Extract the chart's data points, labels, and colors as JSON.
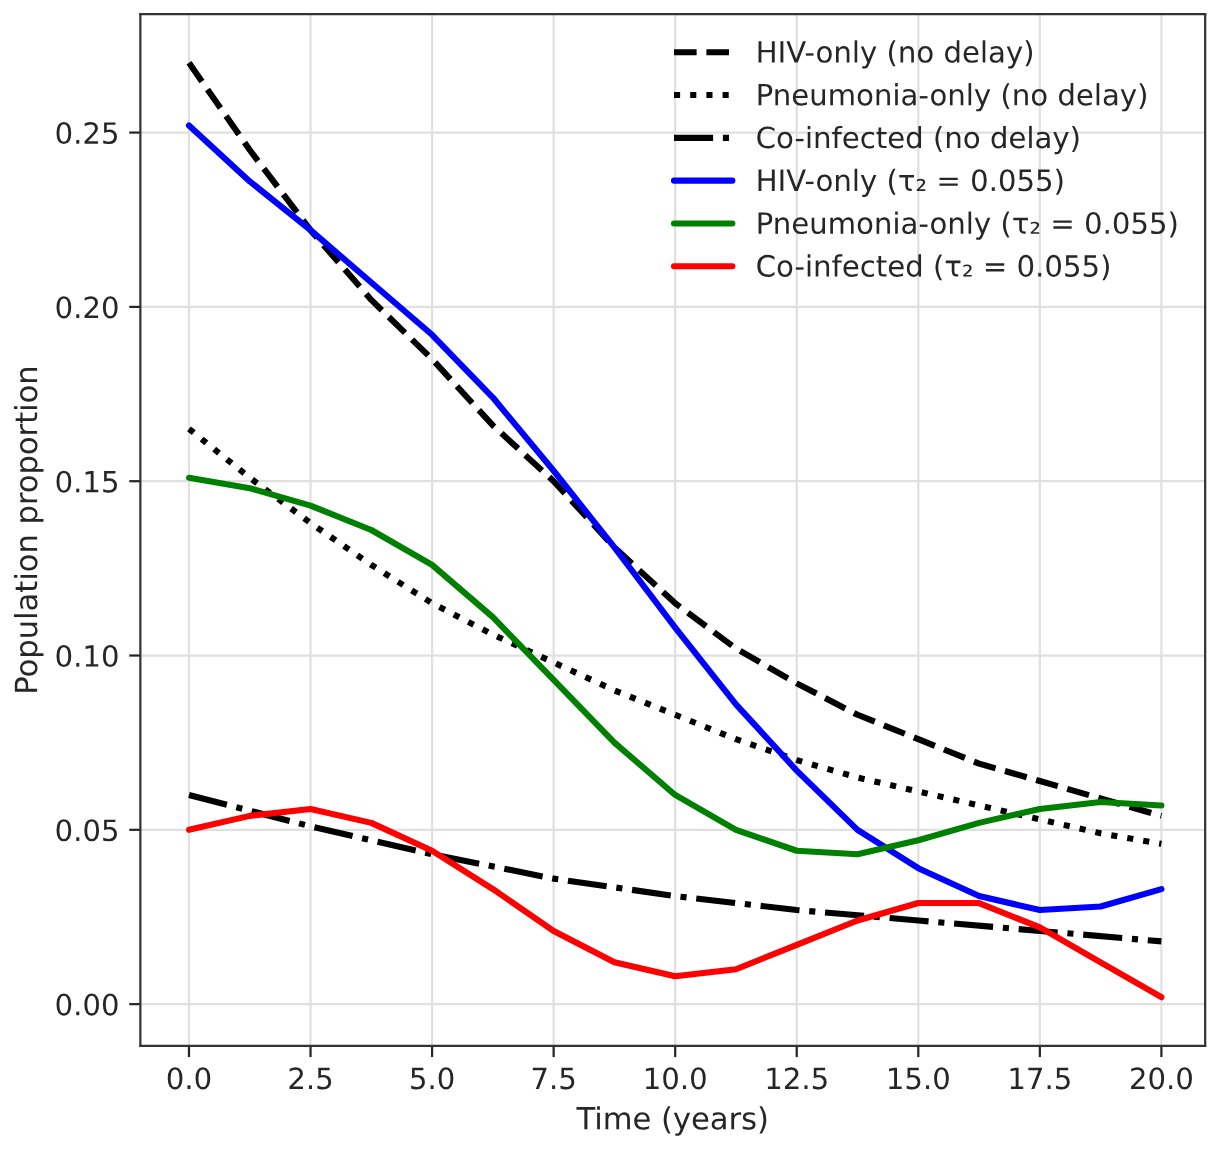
{
  "chart_data": {
    "type": "line",
    "xlabel": "Time (years)",
    "ylabel": "Population proportion",
    "xlim": [
      -1.0,
      20.9
    ],
    "ylim": [
      -0.012,
      0.284
    ],
    "xticks": [
      {
        "value": 0,
        "label": "0.0"
      },
      2.5,
      {
        "value": 5,
        "label": "5.0"
      },
      7.5,
      {
        "value": 10,
        "label": "10.0"
      },
      12.5,
      {
        "value": 15,
        "label": "15.0"
      },
      17.5,
      {
        "value": 20,
        "label": "20.0"
      }
    ],
    "yticks": [
      {
        "value": 0,
        "label": "0.00"
      },
      0.05,
      {
        "value": 0.1,
        "label": "0.10"
      },
      0.15,
      {
        "value": 0.2,
        "label": "0.20"
      },
      0.25
    ],
    "grid": true,
    "legend": "top right",
    "marker": "none",
    "series": [
      {
        "name": "HIV-only (no delay)",
        "color": "#000000",
        "line_style": "dashed",
        "x": [
          0,
          1.25,
          2.5,
          3.75,
          5,
          6.25,
          7.5,
          8.75,
          10,
          11.25,
          12.5,
          13.75,
          15,
          16.25,
          17.5,
          18.75,
          20
        ],
        "values": [
          0.27,
          0.245,
          0.222,
          0.202,
          0.185,
          0.166,
          0.15,
          0.131,
          0.115,
          0.102,
          0.092,
          0.083,
          0.076,
          0.069,
          0.064,
          0.059,
          0.054
        ]
      },
      {
        "name": "Pneumonia-only (no delay)",
        "color": "#000000",
        "line_style": "dotted",
        "x": [
          0,
          1.25,
          2.5,
          3.75,
          5,
          6.25,
          7.5,
          8.75,
          10,
          11.25,
          12.5,
          13.75,
          15,
          16.25,
          17.5,
          18.75,
          20
        ],
        "values": [
          0.165,
          0.151,
          0.138,
          0.126,
          0.115,
          0.106,
          0.098,
          0.09,
          0.083,
          0.076,
          0.07,
          0.065,
          0.061,
          0.057,
          0.053,
          0.049,
          0.046
        ]
      },
      {
        "name": "Co-infected (no delay)",
        "color": "#000000",
        "line_style": "dashdot",
        "x": [
          0,
          2.5,
          5,
          7.5,
          10,
          12.5,
          15,
          17.5,
          20
        ],
        "values": [
          0.06,
          0.051,
          0.043,
          0.036,
          0.031,
          0.027,
          0.024,
          0.021,
          0.018
        ]
      },
      {
        "name": "HIV-only (τ₂ = 0.055)",
        "color": "#0000ff",
        "line_style": "solid",
        "x": [
          0,
          1.25,
          2.5,
          3.75,
          5,
          6.25,
          7.5,
          8.75,
          10,
          11.25,
          12.5,
          13.75,
          15,
          16.25,
          17.5,
          18.75,
          20
        ],
        "values": [
          0.252,
          0.236,
          0.222,
          0.207,
          0.192,
          0.174,
          0.153,
          0.131,
          0.108,
          0.086,
          0.067,
          0.05,
          0.039,
          0.031,
          0.027,
          0.028,
          0.033
        ]
      },
      {
        "name": "Pneumonia-only (τ₂ = 0.055)",
        "color": "#008000",
        "line_style": "solid",
        "x": [
          0,
          1.25,
          2.5,
          3.75,
          5,
          6.25,
          7.5,
          8.75,
          10,
          11.25,
          12.5,
          13.75,
          15,
          16.25,
          17.5,
          18.75,
          20
        ],
        "values": [
          0.151,
          0.148,
          0.143,
          0.136,
          0.126,
          0.111,
          0.093,
          0.075,
          0.06,
          0.05,
          0.044,
          0.043,
          0.047,
          0.052,
          0.056,
          0.058,
          0.057
        ]
      },
      {
        "name": "Co-infected (τ₂ = 0.055)",
        "color": "#ff0000",
        "line_style": "solid",
        "x": [
          0,
          1.25,
          2.5,
          3.75,
          5,
          6.25,
          7.5,
          8.75,
          10,
          11.25,
          12.5,
          13.75,
          15,
          16.25,
          17.5,
          18.75,
          20
        ],
        "values": [
          0.05,
          0.054,
          0.056,
          0.052,
          0.044,
          0.033,
          0.021,
          0.012,
          0.008,
          0.01,
          0.017,
          0.024,
          0.029,
          0.029,
          0.022,
          0.012,
          0.002
        ]
      }
    ]
  }
}
